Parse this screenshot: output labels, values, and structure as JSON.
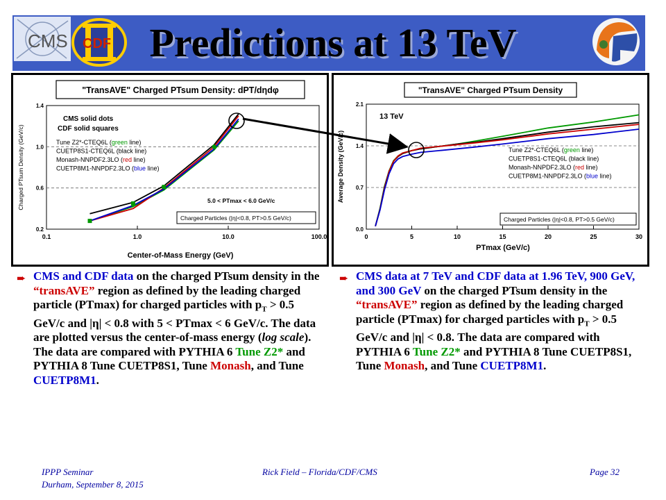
{
  "slide": {
    "title": "Predictions at 13 TeV",
    "logos": {
      "cms_label": "CMS",
      "cdf_label": "CDF"
    }
  },
  "left_text": {
    "p1_a": "CMS and CDF data",
    "p1_b": " on the charged PTsum density in the ",
    "p1_c": "“transAVE”",
    "p1_d": " region as defined by the leading charged particle (PTmax) for charged particles with p",
    "p1_e": "T",
    "p1_f": " > 0.5 GeV/c and |η| < 0.8 with 5 < PTmax < 6 GeV/c. The data are plotted versus the center-of-mass energy (",
    "p1_g": "log scale",
    "p1_h": "). The data are compared with PYTHIA 6 ",
    "p1_i": "Tune Z2*",
    "p1_j": " and PYTHIA 8 Tune CUETP8S1, Tune ",
    "p1_k": "Monash",
    "p1_l": ", and Tune ",
    "p1_m": "CUETP8M1",
    "p1_n": "."
  },
  "right_text": {
    "p2_a": "CMS data at 7 TeV and CDF data at 1.96 TeV, 900 GeV, and 300 GeV",
    "p2_b": " on the charged PTsum density in the ",
    "p2_c": "“transAVE”",
    "p2_d": " region as defined by the leading charged particle (PTmax) for charged particles with p",
    "p2_e": "T",
    "p2_f": " > 0.5 GeV/c and |η| < 0.8. The data are compared with PYTHIA 6 ",
    "p2_g": "Tune Z2*",
    "p2_h": " and PYTHIA 8 Tune CUETP8S1, Tune ",
    "p2_i": "Monash",
    "p2_j": ", and Tune ",
    "p2_k": "CUETP8M1",
    "p2_l": "."
  },
  "footer": {
    "left1": "IPPP Seminar",
    "left2": "Durham, September 8, 2015",
    "center": "Rick Field – Florida/CDF/CMS",
    "right": "Page 32"
  },
  "colors": {
    "green": "#009900",
    "black": "#000000",
    "red": "#cc0000",
    "blue": "#0000cc",
    "title_bar": "#3d5cc4"
  },
  "chart_data": [
    {
      "type": "line",
      "title": "\"TransAVE\" Charged PTsum Density: dPT/dηdφ",
      "xlabel": "Center-of-Mass Energy  (GeV)",
      "ylabel": "Charged PTsum Density (GeV/c)",
      "x_scale": "log",
      "xlim": [
        0.1,
        100.0
      ],
      "ylim": [
        0.2,
        1.4
      ],
      "x_ticks": [
        "0.1",
        "1.0",
        "10.0",
        "100.0"
      ],
      "y_ticks": [
        "0.2",
        "0.6",
        "1.0",
        "1.4"
      ],
      "legend_text": [
        "CMS solid dots",
        "CDF solid squares"
      ],
      "legend_entries": [
        {
          "prefix": "Tune Z2*-CTEQ6L (",
          "color_word": "green",
          "suffix": " line)",
          "color": "green"
        },
        {
          "prefix": "CUETP8S1-CTEQ6L (",
          "color_word": "black",
          "suffix": " line)",
          "color": "black"
        },
        {
          "prefix": "Monash-NNPDF2.3LO (",
          "color_word": "red",
          "suffix": " line)",
          "color": "red"
        },
        {
          "prefix": "CUETP8M1-NNPDF2.3LO (",
          "color_word": "blue",
          "suffix": " line)",
          "color": "blue"
        }
      ],
      "annotations": [
        "5.0 < PTmax < 6.0 GeV/c",
        "Charged Particles (|η|<0.8, PT>0.5 GeV/c)"
      ],
      "x": [
        0.3,
        0.9,
        1.96,
        7.0,
        13.0
      ],
      "series": [
        {
          "name": "Tune Z2*-CTEQ6L",
          "color": "green",
          "values": [
            0.28,
            0.42,
            0.58,
            0.97,
            1.25
          ]
        },
        {
          "name": "CUETP8S1-CTEQ6L",
          "color": "black",
          "values": [
            0.35,
            0.46,
            0.62,
            1.02,
            1.32
          ]
        },
        {
          "name": "Monash-NNPDF2.3LO",
          "color": "red",
          "values": [
            0.28,
            0.4,
            0.6,
            1.0,
            1.3
          ]
        },
        {
          "name": "CUETP8M1-NNPDF2.3LO",
          "color": "blue",
          "values": [
            0.28,
            0.43,
            0.59,
            0.98,
            1.27
          ]
        }
      ],
      "cms_points": {
        "x": [
          0.9,
          7.0
        ],
        "y": [
          0.44,
          1.0
        ]
      },
      "cdf_points": {
        "x": [
          0.3,
          0.9,
          1.96
        ],
        "y": [
          0.28,
          0.45,
          0.61
        ]
      }
    },
    {
      "type": "line",
      "title": "\"TransAVE\" Charged PTsum Density",
      "xlabel": "PTmax (GeV/c)",
      "ylabel": "Average Density (GeV/c)",
      "xlim": [
        0,
        30
      ],
      "ylim": [
        0.0,
        2.1
      ],
      "x_ticks": [
        "0",
        "5",
        "10",
        "15",
        "20",
        "25",
        "30"
      ],
      "y_ticks": [
        "0.0",
        "0.7",
        "1.4",
        "2.1"
      ],
      "energy_label": "13 TeV",
      "legend_entries": [
        {
          "prefix": "Tune Z2*-CTEQ6L (",
          "color_word": "green",
          "suffix": " line)",
          "color": "green"
        },
        {
          "prefix": "CUETP8S1-CTEQ6L (",
          "color_word": "black",
          "suffix": " line)",
          "color": "black"
        },
        {
          "prefix": "Monash-NNPDF2.3LO (",
          "color_word": "red",
          "suffix": " line)",
          "color": "red"
        },
        {
          "prefix": "CUETP8M1-NNPDF2.3LO (",
          "color_word": "blue",
          "suffix": " line)",
          "color": "blue"
        }
      ],
      "annotations": [
        "Charged Particles (|η|<0.8, PT>0.5 GeV/c)"
      ],
      "x": [
        1,
        1.5,
        2,
        2.5,
        3,
        3.5,
        4,
        5,
        6,
        8,
        10,
        12,
        15,
        20,
        25,
        30
      ],
      "series": [
        {
          "name": "Tune Z2*-CTEQ6L",
          "color": "green",
          "values": [
            0.05,
            0.35,
            0.72,
            0.98,
            1.15,
            1.23,
            1.28,
            1.32,
            1.35,
            1.39,
            1.43,
            1.48,
            1.56,
            1.7,
            1.8,
            1.92
          ]
        },
        {
          "name": "CUETP8S1-CTEQ6L",
          "color": "black",
          "values": [
            0.05,
            0.33,
            0.7,
            0.97,
            1.14,
            1.22,
            1.27,
            1.32,
            1.35,
            1.39,
            1.43,
            1.46,
            1.52,
            1.63,
            1.72,
            1.79
          ]
        },
        {
          "name": "Monash-NNPDF2.3LO",
          "color": "red",
          "values": [
            0.05,
            0.33,
            0.69,
            0.97,
            1.14,
            1.23,
            1.28,
            1.32,
            1.36,
            1.39,
            1.42,
            1.45,
            1.5,
            1.6,
            1.68,
            1.76
          ]
        },
        {
          "name": "CUETP8M1-NNPDF2.3LO",
          "color": "blue",
          "values": [
            0.05,
            0.32,
            0.66,
            0.93,
            1.1,
            1.18,
            1.22,
            1.26,
            1.29,
            1.32,
            1.35,
            1.38,
            1.43,
            1.52,
            1.59,
            1.68
          ]
        }
      ]
    }
  ]
}
